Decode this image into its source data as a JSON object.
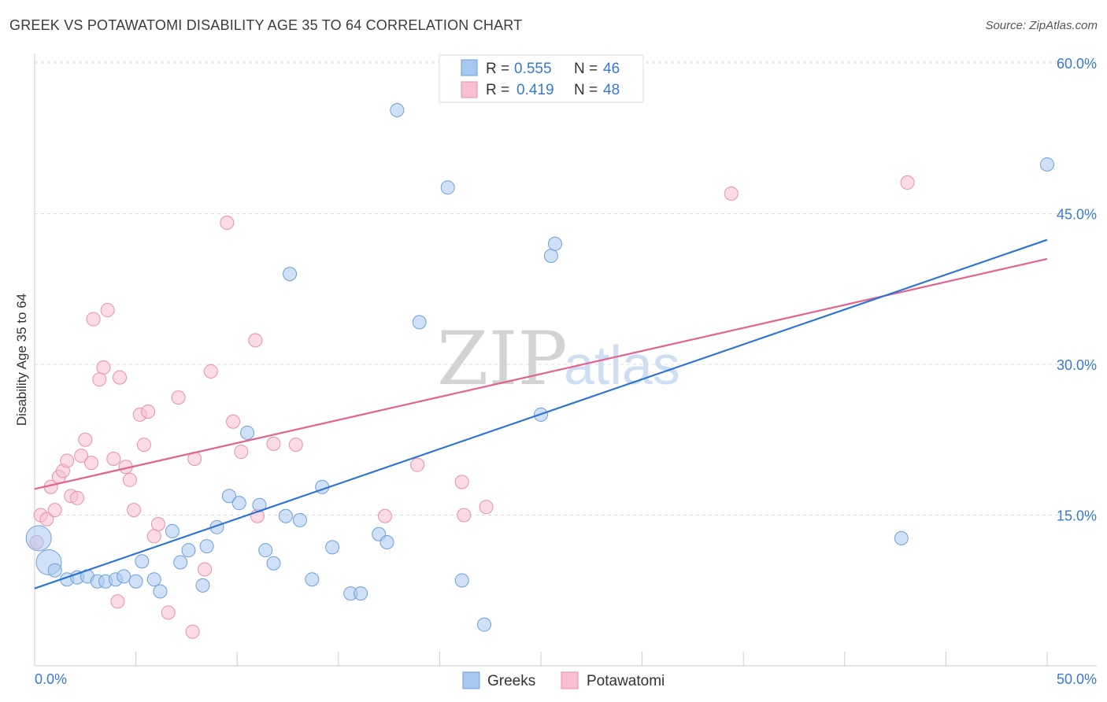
{
  "title": "GREEK VS POTAWATOMI DISABILITY AGE 35 TO 64 CORRELATION CHART",
  "source": "Source: ZipAtlas.com",
  "watermark": {
    "zip": "ZIP",
    "atlas": "atlas"
  },
  "colors": {
    "greek_fill": "#a9c8f0",
    "greek_stroke": "#6d9fdc",
    "greek_line": "#2b74d3",
    "pota_fill": "#f7bfd0",
    "pota_stroke": "#ea8fac",
    "pota_line": "#e2638e",
    "value_text": "#3a78cf",
    "grid": "#dddddd",
    "axis_text": "#3a78cf"
  },
  "legend": {
    "rows": [
      {
        "r_label": "R = ",
        "r_value": "0.555",
        "n_label": "N = ",
        "n_value": "46"
      },
      {
        "r_label": "R = ",
        "r_value": "0.419",
        "n_label": "N = ",
        "n_value": "48"
      }
    ]
  },
  "chart_data": {
    "type": "scatter",
    "title": "GREEK VS POTAWATOMI DISABILITY AGE 35 TO 64 CORRELATION CHART",
    "xlabel": "",
    "ylabel": "Disability Age 35 to 64",
    "xlim": [
      0,
      50
    ],
    "ylim": [
      0,
      60
    ],
    "x_tick_labels": [
      "0.0%",
      "50.0%"
    ],
    "y_ticks": [
      15,
      30,
      45,
      60
    ],
    "y_tick_labels": [
      "15.0%",
      "30.0%",
      "45.0%",
      "60.0%"
    ],
    "grid": true,
    "series": [
      {
        "name": "Greeks",
        "r": 0.555,
        "n": 46,
        "trend": {
          "x": [
            0,
            50
          ],
          "y": [
            7.7,
            42.4
          ]
        },
        "points": [
          {
            "x": 0.2,
            "y": 12.7,
            "big": true
          },
          {
            "x": 0.7,
            "y": 10.3,
            "big": true
          },
          {
            "x": 1.0,
            "y": 9.5
          },
          {
            "x": 1.6,
            "y": 8.6
          },
          {
            "x": 2.1,
            "y": 8.8
          },
          {
            "x": 2.6,
            "y": 8.9
          },
          {
            "x": 3.1,
            "y": 8.4
          },
          {
            "x": 3.5,
            "y": 8.4
          },
          {
            "x": 4.0,
            "y": 8.6
          },
          {
            "x": 4.4,
            "y": 8.9
          },
          {
            "x": 5.0,
            "y": 8.4
          },
          {
            "x": 5.3,
            "y": 10.4
          },
          {
            "x": 5.9,
            "y": 8.6
          },
          {
            "x": 6.2,
            "y": 7.4
          },
          {
            "x": 6.8,
            "y": 13.4
          },
          {
            "x": 7.2,
            "y": 10.3
          },
          {
            "x": 7.6,
            "y": 11.5
          },
          {
            "x": 8.3,
            "y": 8.0
          },
          {
            "x": 8.5,
            "y": 11.9
          },
          {
            "x": 9.0,
            "y": 13.8
          },
          {
            "x": 9.6,
            "y": 16.9
          },
          {
            "x": 10.1,
            "y": 16.2
          },
          {
            "x": 10.5,
            "y": 23.2
          },
          {
            "x": 11.1,
            "y": 16.0
          },
          {
            "x": 11.4,
            "y": 11.5
          },
          {
            "x": 11.8,
            "y": 10.2
          },
          {
            "x": 12.4,
            "y": 14.9
          },
          {
            "x": 12.6,
            "y": 39.0
          },
          {
            "x": 13.1,
            "y": 14.5
          },
          {
            "x": 13.7,
            "y": 8.6
          },
          {
            "x": 14.2,
            "y": 17.8
          },
          {
            "x": 14.7,
            "y": 11.8
          },
          {
            "x": 15.6,
            "y": 7.2
          },
          {
            "x": 16.1,
            "y": 7.2
          },
          {
            "x": 17.0,
            "y": 13.1
          },
          {
            "x": 17.4,
            "y": 12.3
          },
          {
            "x": 17.9,
            "y": 55.3
          },
          {
            "x": 19.0,
            "y": 34.2
          },
          {
            "x": 20.4,
            "y": 47.6
          },
          {
            "x": 21.1,
            "y": 8.5
          },
          {
            "x": 22.2,
            "y": 4.1
          },
          {
            "x": 25.0,
            "y": 25.0
          },
          {
            "x": 25.5,
            "y": 40.8
          },
          {
            "x": 25.7,
            "y": 42.0
          },
          {
            "x": 42.8,
            "y": 12.7
          },
          {
            "x": 50.0,
            "y": 49.9
          }
        ]
      },
      {
        "name": "Potawatomi",
        "r": 0.419,
        "n": 48,
        "trend": {
          "x": [
            0,
            50
          ],
          "y": [
            17.6,
            40.5
          ]
        },
        "points": [
          {
            "x": 0.1,
            "y": 12.3
          },
          {
            "x": 0.3,
            "y": 15.0
          },
          {
            "x": 0.6,
            "y": 14.6
          },
          {
            "x": 0.8,
            "y": 17.8
          },
          {
            "x": 1.0,
            "y": 15.5
          },
          {
            "x": 1.2,
            "y": 18.8
          },
          {
            "x": 1.4,
            "y": 19.4
          },
          {
            "x": 1.6,
            "y": 20.4
          },
          {
            "x": 1.8,
            "y": 16.9
          },
          {
            "x": 2.1,
            "y": 16.7
          },
          {
            "x": 2.3,
            "y": 20.9
          },
          {
            "x": 2.5,
            "y": 22.5
          },
          {
            "x": 2.8,
            "y": 20.2
          },
          {
            "x": 2.9,
            "y": 34.5
          },
          {
            "x": 3.2,
            "y": 28.5
          },
          {
            "x": 3.4,
            "y": 29.7
          },
          {
            "x": 3.6,
            "y": 35.4
          },
          {
            "x": 3.9,
            "y": 20.6
          },
          {
            "x": 4.1,
            "y": 6.4
          },
          {
            "x": 4.2,
            "y": 28.7
          },
          {
            "x": 4.5,
            "y": 19.8
          },
          {
            "x": 4.7,
            "y": 18.5
          },
          {
            "x": 4.9,
            "y": 15.5
          },
          {
            "x": 5.2,
            "y": 25.0
          },
          {
            "x": 5.4,
            "y": 22.0
          },
          {
            "x": 5.6,
            "y": 25.3
          },
          {
            "x": 5.9,
            "y": 12.9
          },
          {
            "x": 6.1,
            "y": 14.1
          },
          {
            "x": 6.6,
            "y": 5.3
          },
          {
            "x": 7.1,
            "y": 26.7
          },
          {
            "x": 7.9,
            "y": 20.6
          },
          {
            "x": 7.8,
            "y": 3.4
          },
          {
            "x": 8.4,
            "y": 9.6
          },
          {
            "x": 8.7,
            "y": 29.3
          },
          {
            "x": 9.5,
            "y": 44.1
          },
          {
            "x": 9.8,
            "y": 24.3
          },
          {
            "x": 10.2,
            "y": 21.3
          },
          {
            "x": 10.9,
            "y": 32.4
          },
          {
            "x": 11.0,
            "y": 14.9
          },
          {
            "x": 11.8,
            "y": 22.1
          },
          {
            "x": 12.9,
            "y": 22.0
          },
          {
            "x": 17.3,
            "y": 14.9
          },
          {
            "x": 18.9,
            "y": 20.0
          },
          {
            "x": 21.1,
            "y": 18.3
          },
          {
            "x": 21.2,
            "y": 15.0
          },
          {
            "x": 22.3,
            "y": 15.8
          },
          {
            "x": 34.4,
            "y": 47.0
          },
          {
            "x": 43.1,
            "y": 48.1
          }
        ]
      }
    ]
  }
}
